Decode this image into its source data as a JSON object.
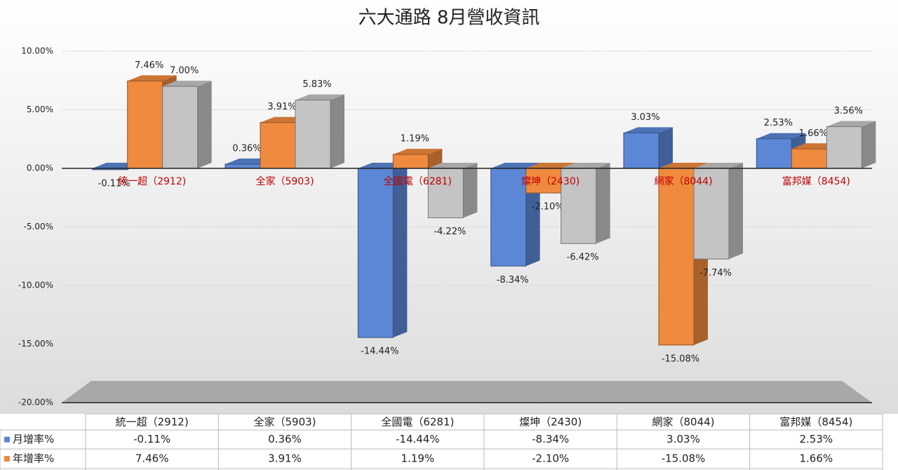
{
  "chart_data": {
    "type": "bar",
    "title": "六大通路 8月營收資訊",
    "categories": [
      "統一超（2912)",
      "全家（5903)",
      "全國電（6281)",
      "燦坤（2430)",
      "網家（8044)",
      "富邦媒（8454)"
    ],
    "series": [
      {
        "name": "月增率%",
        "color": "#5b87d6",
        "values": [
          -0.11,
          0.36,
          -14.44,
          -8.34,
          3.03,
          2.53
        ],
        "value_labels": [
          "-0.11%",
          "0.36%",
          "-14.44%",
          "-8.34%",
          "3.03%",
          "2.53%"
        ]
      },
      {
        "name": "年增率%",
        "color": "#f08a3e",
        "values": [
          7.46,
          3.91,
          1.19,
          -2.1,
          -15.08,
          1.66
        ],
        "value_labels": [
          "7.46%",
          "3.91%",
          "1.19%",
          "-2.10%",
          "-15.08%",
          "1.66%"
        ]
      },
      {
        "color": "#c4c4c4",
        "values": [
          7.0,
          5.83,
          -4.22,
          -6.42,
          -7.74,
          3.56
        ],
        "value_labels": [
          "7.00%",
          "5.83%",
          "-4.22%",
          "-6.42%",
          "-7.74%",
          "3.56%"
        ]
      }
    ],
    "ylim": [
      -20,
      10
    ],
    "yticks": [
      {
        "value": -20,
        "label": "-20.00%"
      },
      {
        "value": -15,
        "label": "-15.00%"
      },
      {
        "value": -10,
        "label": "-10.00%"
      },
      {
        "value": -5,
        "label": "-5.00%"
      },
      {
        "value": 0,
        "label": "0.00%"
      },
      {
        "value": 5,
        "label": "5.00%"
      },
      {
        "value": 10,
        "label": "10.00%"
      }
    ],
    "grid": true
  }
}
